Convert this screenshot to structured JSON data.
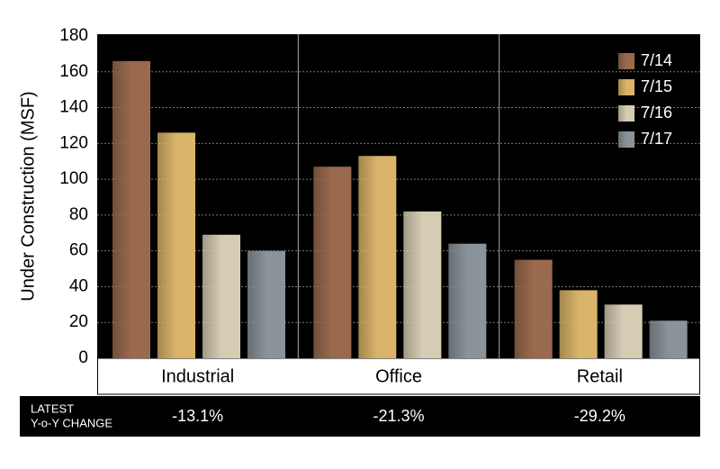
{
  "chart_data": {
    "type": "bar",
    "ylabel": "Under Construction (MSF)",
    "categories": [
      "Industrial",
      "Office",
      "Retail"
    ],
    "series": [
      {
        "name": "7/14",
        "color": "#9a6a4e",
        "values": [
          166,
          107,
          55
        ]
      },
      {
        "name": "7/15",
        "color": "#d9b46a",
        "values": [
          126,
          113,
          38
        ]
      },
      {
        "name": "7/16",
        "color": "#d6ccb4",
        "values": [
          69,
          82,
          30
        ]
      },
      {
        "name": "7/17",
        "color": "#8a9399",
        "values": [
          60,
          64,
          21
        ]
      }
    ],
    "ylim": [
      0,
      180
    ],
    "yticks": [
      0,
      20,
      40,
      60,
      80,
      100,
      120,
      140,
      160,
      180
    ],
    "grid": true,
    "legend": "top-right",
    "change": {
      "label": [
        "LATEST",
        "Y-o-Y CHANGE"
      ],
      "values": [
        "-13.1%",
        "-21.3%",
        "-29.2%"
      ]
    }
  }
}
